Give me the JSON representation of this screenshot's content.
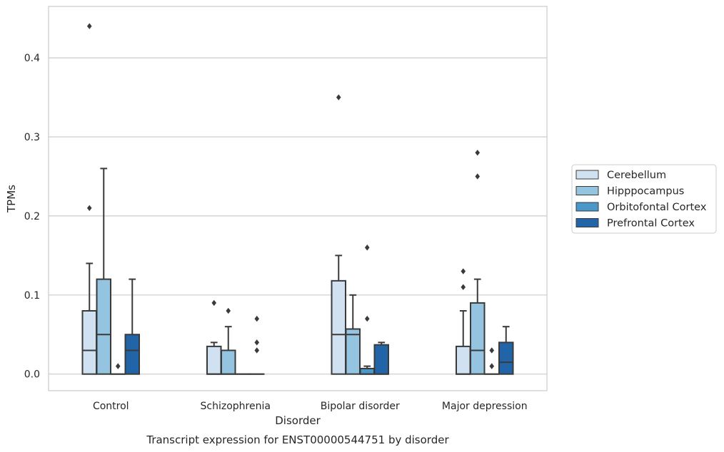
{
  "chart_data": {
    "type": "box",
    "title": "",
    "caption": "Transcript expression for ENST00000544751 by disorder",
    "xlabel": "Disorder",
    "ylabel": "TPMs",
    "ylim": [
      -0.021,
      0.465
    ],
    "yticks": [
      0.0,
      0.1,
      0.2,
      0.3,
      0.4
    ],
    "ytick_labels": [
      "0.0",
      "0.1",
      "0.2",
      "0.3",
      "0.4"
    ],
    "grid": true,
    "legend_position": "right",
    "categories": [
      "Control",
      "Schizophrenia",
      "Bipolar disorder",
      "Major depression"
    ],
    "series": [
      {
        "name": "Cerebellum",
        "color": "#d0e1f2",
        "boxes": [
          {
            "whisker_low": 0.0,
            "q1": 0.0,
            "median": 0.03,
            "q3": 0.08,
            "whisker_high": 0.14,
            "outliers": [
              0.21,
              0.44
            ]
          },
          {
            "whisker_low": 0.0,
            "q1": 0.0,
            "median": 0.0,
            "q3": 0.035,
            "whisker_high": 0.04,
            "outliers": [
              0.09
            ]
          },
          {
            "whisker_low": 0.0,
            "q1": 0.0,
            "median": 0.05,
            "q3": 0.118,
            "whisker_high": 0.15,
            "outliers": [
              0.35
            ]
          },
          {
            "whisker_low": 0.0,
            "q1": 0.0,
            "median": 0.0,
            "q3": 0.035,
            "whisker_high": 0.08,
            "outliers": [
              0.11,
              0.13
            ]
          }
        ]
      },
      {
        "name": "Hipppocampus",
        "color": "#94c4df",
        "boxes": [
          {
            "whisker_low": 0.0,
            "q1": 0.0,
            "median": 0.05,
            "q3": 0.12,
            "whisker_high": 0.26,
            "outliers": []
          },
          {
            "whisker_low": 0.0,
            "q1": 0.0,
            "median": 0.0,
            "q3": 0.03,
            "whisker_high": 0.06,
            "outliers": [
              0.08
            ]
          },
          {
            "whisker_low": 0.0,
            "q1": 0.0,
            "median": 0.05,
            "q3": 0.057,
            "whisker_high": 0.1,
            "outliers": []
          },
          {
            "whisker_low": 0.0,
            "q1": 0.0,
            "median": 0.03,
            "q3": 0.09,
            "whisker_high": 0.12,
            "outliers": [
              0.25,
              0.28
            ]
          }
        ]
      },
      {
        "name": "Orbitofontal Cortex",
        "color": "#4a98c9",
        "boxes": [
          {
            "whisker_low": 0.0,
            "q1": 0.0,
            "median": 0.0,
            "q3": 0.0,
            "whisker_high": 0.0,
            "outliers": [
              0.01
            ]
          },
          {
            "whisker_low": 0.0,
            "q1": 0.0,
            "median": 0.0,
            "q3": 0.0,
            "whisker_high": 0.0,
            "outliers": []
          },
          {
            "whisker_low": 0.0,
            "q1": 0.0,
            "median": 0.0,
            "q3": 0.007,
            "whisker_high": 0.01,
            "outliers": [
              0.07,
              0.16
            ]
          },
          {
            "whisker_low": 0.0,
            "q1": 0.0,
            "median": 0.0,
            "q3": 0.0,
            "whisker_high": 0.0,
            "outliers": [
              0.01,
              0.03
            ]
          }
        ]
      },
      {
        "name": "Prefrontal Cortex",
        "color": "#2165a8",
        "boxes": [
          {
            "whisker_low": 0.0,
            "q1": 0.0,
            "median": 0.03,
            "q3": 0.05,
            "whisker_high": 0.12,
            "outliers": []
          },
          {
            "whisker_low": 0.0,
            "q1": 0.0,
            "median": 0.0,
            "q3": 0.0,
            "whisker_high": 0.0,
            "outliers": [
              0.03,
              0.04,
              0.07
            ]
          },
          {
            "whisker_low": 0.0,
            "q1": 0.0,
            "median": 0.0,
            "q3": 0.037,
            "whisker_high": 0.04,
            "outliers": []
          },
          {
            "whisker_low": 0.0,
            "q1": 0.0,
            "median": 0.015,
            "q3": 0.04,
            "whisker_high": 0.06,
            "outliers": []
          }
        ]
      }
    ]
  }
}
